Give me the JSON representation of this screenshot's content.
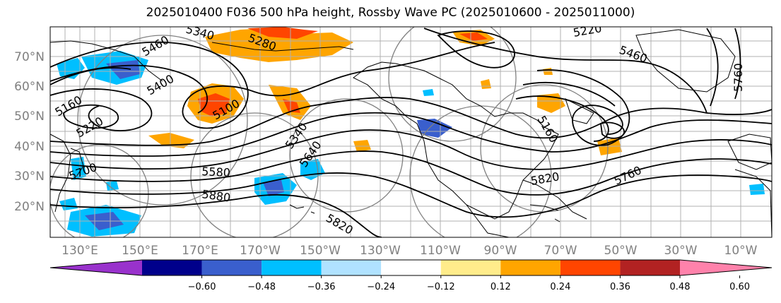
{
  "title": "2025010400 F036 500 hPa height, Rossby Wave PC (2025010600 - 2025011000)",
  "map": {
    "lat_labels": [
      "70°N",
      "60°N",
      "50°N",
      "40°N",
      "30°N",
      "20°N"
    ],
    "lon_labels": [
      "130°E",
      "150°E",
      "170°E",
      "170°W",
      "150°W",
      "130°W",
      "110°W",
      "90°W",
      "70°W",
      "50°W",
      "30°W",
      "10°W"
    ],
    "contour_labels": [
      "5340",
      "5280",
      "5220",
      "5460",
      "5400",
      "5160",
      "5100",
      "5220",
      "5700",
      "5580",
      "5880",
      "5820",
      "5760",
      "5460",
      "5160",
      "5760",
      "5820",
      "5640",
      "5340"
    ]
  },
  "colorbar": {
    "ticks": [
      "−0.60",
      "−0.48",
      "−0.36",
      "−0.24",
      "−0.12",
      "0.12",
      "0.24",
      "0.36",
      "0.48",
      "0.60"
    ],
    "colors": [
      "#9932cc",
      "#00008b",
      "#3a5fcd",
      "#00bfff",
      "#b0e2ff",
      "#ffffff",
      "#ffec8b",
      "#ffa500",
      "#ff4500",
      "#b22222",
      "#ff82ab"
    ]
  }
}
